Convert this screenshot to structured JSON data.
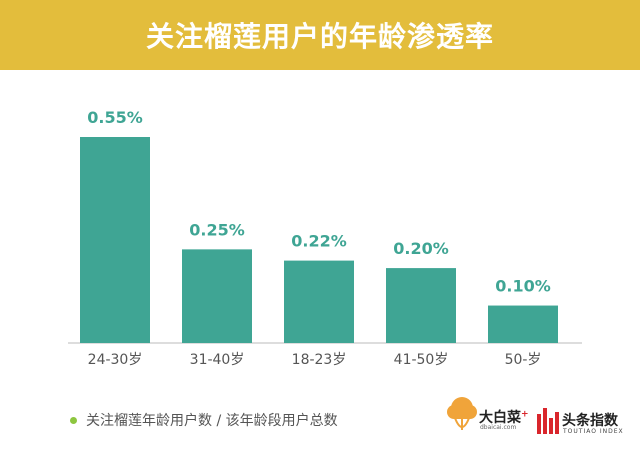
{
  "colors": {
    "title_bg": "#E3BD3C",
    "bar": "#3FA594",
    "value_label": "#3FA594",
    "axis": "#BBBBBB",
    "tick_label": "#555555",
    "legend_dot": "#8DC63F",
    "logo_orange": "#F0A43A",
    "logo_red": "#D9262C"
  },
  "chart_data": {
    "type": "bar",
    "title": "关注榴莲用户的年龄渗透率",
    "categories": [
      "24-30岁",
      "31-40岁",
      "18-23岁",
      "41-50岁",
      "50-岁"
    ],
    "values": [
      0.55,
      0.25,
      0.22,
      0.2,
      0.1
    ],
    "value_labels": [
      "0.55%",
      "0.25%",
      "0.22%",
      "0.20%",
      "0.10%"
    ],
    "unit": "%",
    "ylim": [
      0,
      0.6
    ],
    "grid": false,
    "legend_position": "bottom-left",
    "legend": "关注榴莲年龄用户数 / 该年龄段用户总数"
  },
  "logos": {
    "dabaicai_name": "大白菜",
    "dabaicai_plus": "+",
    "dabaicai_domain": "dbaicai.com",
    "toutiao_name": "头条指数",
    "toutiao_sub": "TOUTIAO INDEX"
  }
}
